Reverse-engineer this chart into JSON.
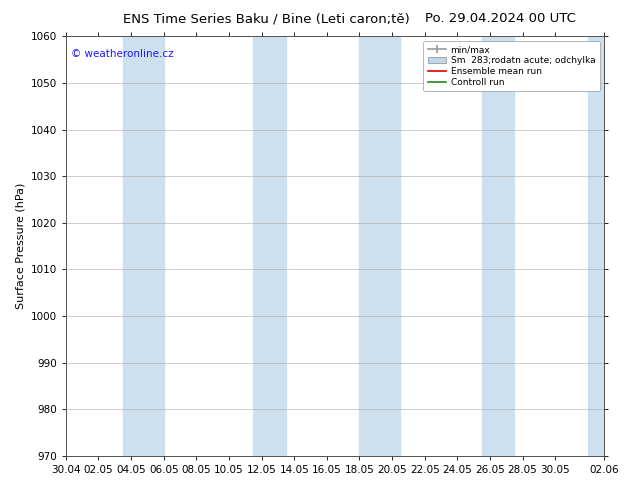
{
  "title_left": "ENS Time Series Baku / Bine (Leti caron;tě)",
  "title_right": "Po. 29.04.2024 00 UTC",
  "ylabel": "Surface Pressure (hPa)",
  "ylim": [
    970,
    1060
  ],
  "yticks": [
    970,
    980,
    990,
    1000,
    1010,
    1020,
    1030,
    1040,
    1050,
    1060
  ],
  "xlabels": [
    "30.04",
    "02.05",
    "04.05",
    "06.05",
    "08.05",
    "10.05",
    "12.05",
    "14.05",
    "16.05",
    "18.05",
    "20.05",
    "22.05",
    "24.05",
    "26.05",
    "28.05",
    "30.05",
    "02.06"
  ],
  "x_num_positions": [
    0,
    2,
    4,
    6,
    8,
    10,
    12,
    14,
    16,
    18,
    20,
    22,
    24,
    26,
    28,
    30,
    33
  ],
  "band_color": "#cce0f0",
  "background_color": "#ffffff",
  "title_fontsize": 9.5,
  "axis_label_fontsize": 8,
  "tick_fontsize": 7.5,
  "copyright_text": "© weatheronline.cz",
  "copyright_color": "#1a1aff",
  "legend_labels": [
    "min/max",
    "Sm  283;rodatn acute; odchylka",
    "Ensemble mean run",
    "Controll run"
  ],
  "legend_colors_line": [
    "#aaaaaa",
    "#b8d4e8",
    "#dd0000",
    "#228822"
  ],
  "total_days": 33,
  "blue_band_xranges": [
    [
      3.5,
      6.0
    ],
    [
      11.5,
      13.5
    ],
    [
      18.0,
      20.5
    ],
    [
      25.5,
      27.5
    ],
    [
      32.0,
      33.5
    ]
  ]
}
